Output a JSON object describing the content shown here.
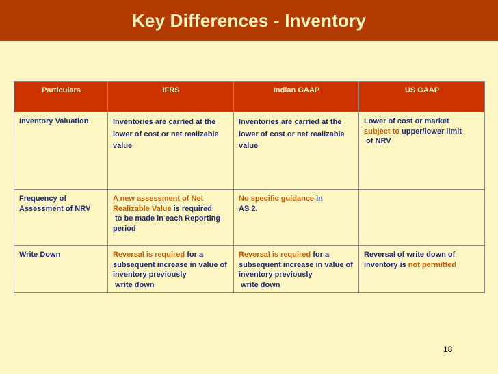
{
  "title": "Key Differences - Inventory",
  "table": {
    "headers": [
      "Particulars",
      "IFRS",
      "Indian GAAP",
      "US GAAP"
    ],
    "rows": [
      {
        "particular": "Inventory Valuation",
        "ifrs": "Inventories are carried at the lower of cost  or net realizable value",
        "indian_gaap": "Inventories are carried at the lower of cost  or net realizable value",
        "us_gaap": {
          "line1": "Lower of cost or market",
          "highlight": "subject to",
          "rest": " upper/lower limit",
          "line3": "of NRV"
        }
      },
      {
        "particular": "Frequency of Assessment of NRV",
        "ifrs": {
          "highlight": "A new assessment of Net Realizable Value",
          "rest": " is required",
          "rest2": "to be made in each Reporting period"
        },
        "indian_gaap": {
          "highlight": "No specific guidance",
          "rest": " in",
          "rest2": "AS 2."
        },
        "us_gaap": ""
      },
      {
        "particular": "Write Down",
        "ifrs": {
          "highlight": "Reversal is required",
          "rest": " for a subsequent increase in value of inventory previously",
          "rest2": "write down"
        },
        "indian_gaap": {
          "highlight": "Reversal is required",
          "rest": " for a subsequent increase in value of inventory previously",
          "rest2": "write down"
        },
        "us_gaap": {
          "plain": "Reversal of write down of inventory is ",
          "highlight": "not permitted"
        }
      }
    ]
  },
  "page_number": "18",
  "colors": {
    "background": "#fdf6c3",
    "title_bar": "#b33a00",
    "header_row": "#cc3300",
    "text": "#1f2a78",
    "highlight": "#c85a00"
  }
}
